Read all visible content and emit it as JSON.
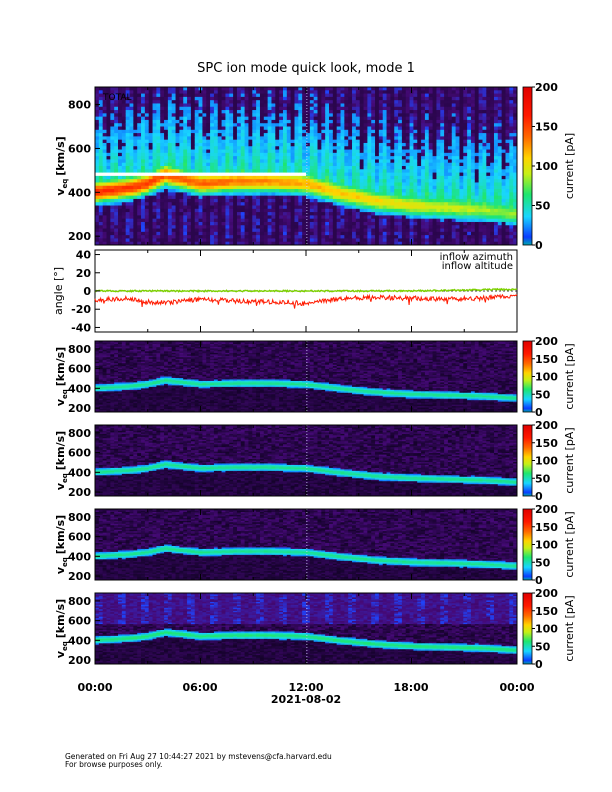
{
  "title": "SPC ion mode quick look, mode 1",
  "time_ticks": [
    "00:00",
    "06:00",
    "12:00",
    "18:00",
    "00:00"
  ],
  "date_label": "2021-08-02",
  "panel1_tag": "TOTAL",
  "veq_ticks": [
    "200",
    "400",
    "600",
    "800"
  ],
  "angle_ticks": [
    "40",
    "20",
    "0",
    "-20",
    "-40"
  ],
  "current_ticks": [
    "0",
    "50",
    "100",
    "150",
    "200"
  ],
  "ylabel_speed": "v",
  "ylabel_speed_sub": "eq",
  "ylabel_speed_unit": "[km/s]",
  "ylabel_angle": "angle [°]",
  "colorbar_label": "current [pA]",
  "legend": {
    "azimuth": "inflow azimuth",
    "altitude": "inflow altitude"
  },
  "colors": {
    "azimuth": "#ff1a00",
    "altitude": "#7cd000"
  },
  "footer": {
    "line1": "Generated on Fri Aug 27 10:44:27 2021 by mstevens@cfa.harvard.edu",
    "line2": "For browse purposes only."
  },
  "chart_data": {
    "type": "heatmap",
    "x_axis": {
      "label": "2021-08-02",
      "range_hours": [
        0,
        24
      ],
      "ticks": [
        "00:00",
        "06:00",
        "12:00",
        "18:00",
        "00:00"
      ]
    },
    "speed_axis": {
      "unit": "km/s",
      "range": [
        160,
        880
      ]
    },
    "colorbar": {
      "label": "current [pA]",
      "range": [
        0,
        200
      ]
    },
    "panels": [
      {
        "tag": "TOTAL",
        "quantity": "v_eq [km/s]"
      },
      {
        "quantity": "angle [°]",
        "ylim": [
          -45,
          45
        ]
      },
      {
        "quantity": "v_eq [km/s]"
      },
      {
        "quantity": "v_eq [km/s]"
      },
      {
        "quantity": "v_eq [km/s]"
      },
      {
        "quantity": "v_eq [km/s]"
      }
    ],
    "proton_peak_speed": {
      "hours": [
        0,
        2,
        3,
        4,
        6,
        8,
        10,
        12,
        14,
        16,
        18,
        20,
        22,
        24
      ],
      "values": [
        400,
        420,
        440,
        480,
        440,
        450,
        450,
        440,
        395,
        360,
        340,
        330,
        320,
        300
      ]
    },
    "series": [
      {
        "name": "inflow azimuth",
        "hours": [
          0,
          2,
          3,
          4,
          6,
          8,
          10,
          11,
          12,
          14,
          16,
          18,
          20,
          22,
          24
        ],
        "values": [
          -10,
          -8,
          -12,
          -13,
          -9,
          -11,
          -12,
          -12,
          -14,
          -8,
          -7,
          -8,
          -9,
          -8,
          -5
        ]
      },
      {
        "name": "inflow altitude",
        "hours": [
          0,
          3,
          6,
          9,
          12,
          15,
          18,
          21,
          24
        ],
        "values": [
          0,
          0,
          0,
          0,
          0,
          0,
          0,
          1,
          2
        ]
      }
    ]
  }
}
